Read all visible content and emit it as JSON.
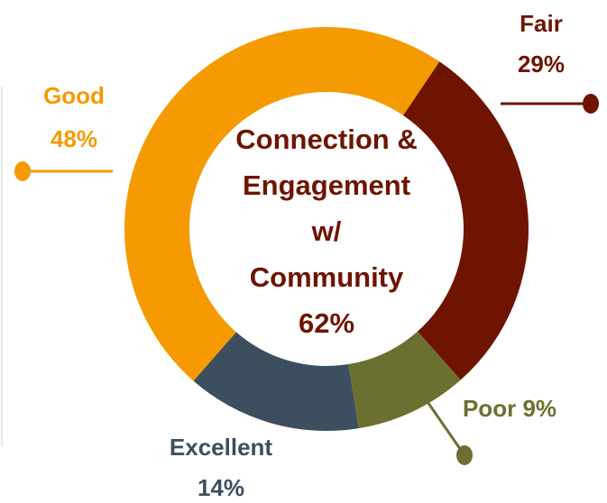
{
  "chart_data": {
    "type": "donut",
    "categories": [
      "Fair",
      "Poor",
      "Excellent",
      "Good"
    ],
    "values": [
      29,
      9,
      14,
      48
    ],
    "value_labels": [
      "29%",
      "9%",
      "14%",
      "48%"
    ],
    "colors": [
      "#6e1400",
      "#6b7030",
      "#3d4f5e",
      "#f59a00"
    ],
    "center_label": [
      "Connection &",
      "Engagement",
      "w/",
      "Community"
    ],
    "center_value": 62,
    "center_value_label": "62%"
  }
}
